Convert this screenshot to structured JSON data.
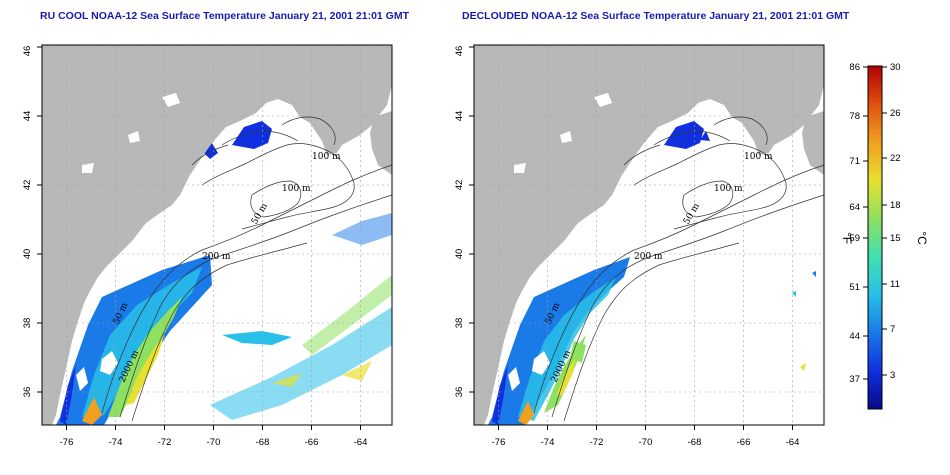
{
  "panels": [
    {
      "title": "RU COOL NOAA-12 Sea Surface Temperature January 21, 2001 21:01 GMT",
      "contour_labels": [
        "100 m",
        "100 m",
        "50 m",
        "200 m",
        "50 m",
        "2000 m"
      ]
    },
    {
      "title": "DECLOUDED NOAA-12 Sea Surface Temperature January 21, 2001 21:01 GMT",
      "contour_labels": [
        "100 m",
        "100 m",
        "50 m",
        "200 m",
        "50 m",
        "2000 m"
      ]
    }
  ],
  "axes": {
    "x_ticks": [
      "-76",
      "-74",
      "-72",
      "-70",
      "-68",
      "-66",
      "-64"
    ],
    "y_ticks": [
      "36",
      "38",
      "40",
      "42",
      "44",
      "46"
    ]
  },
  "colorbar": {
    "fahrenheit_unit": "°F",
    "celsius_unit": "°C",
    "fahrenheit_ticks": [
      "86",
      "78",
      "71",
      "64",
      "59",
      "51",
      "44",
      "37"
    ],
    "celsius_ticks": [
      "30",
      "26",
      "22",
      "18",
      "15",
      "11",
      "7",
      "3"
    ],
    "colors": [
      "#08088a",
      "#1030e0",
      "#1a7ae8",
      "#28c0e8",
      "#40e0b0",
      "#8ee060",
      "#e8e030",
      "#f0a020",
      "#e05010",
      "#b00000"
    ]
  },
  "colors": {
    "land": "#b8b8b8",
    "title": "#1a1ab0",
    "grid": "#a0a0a0"
  }
}
